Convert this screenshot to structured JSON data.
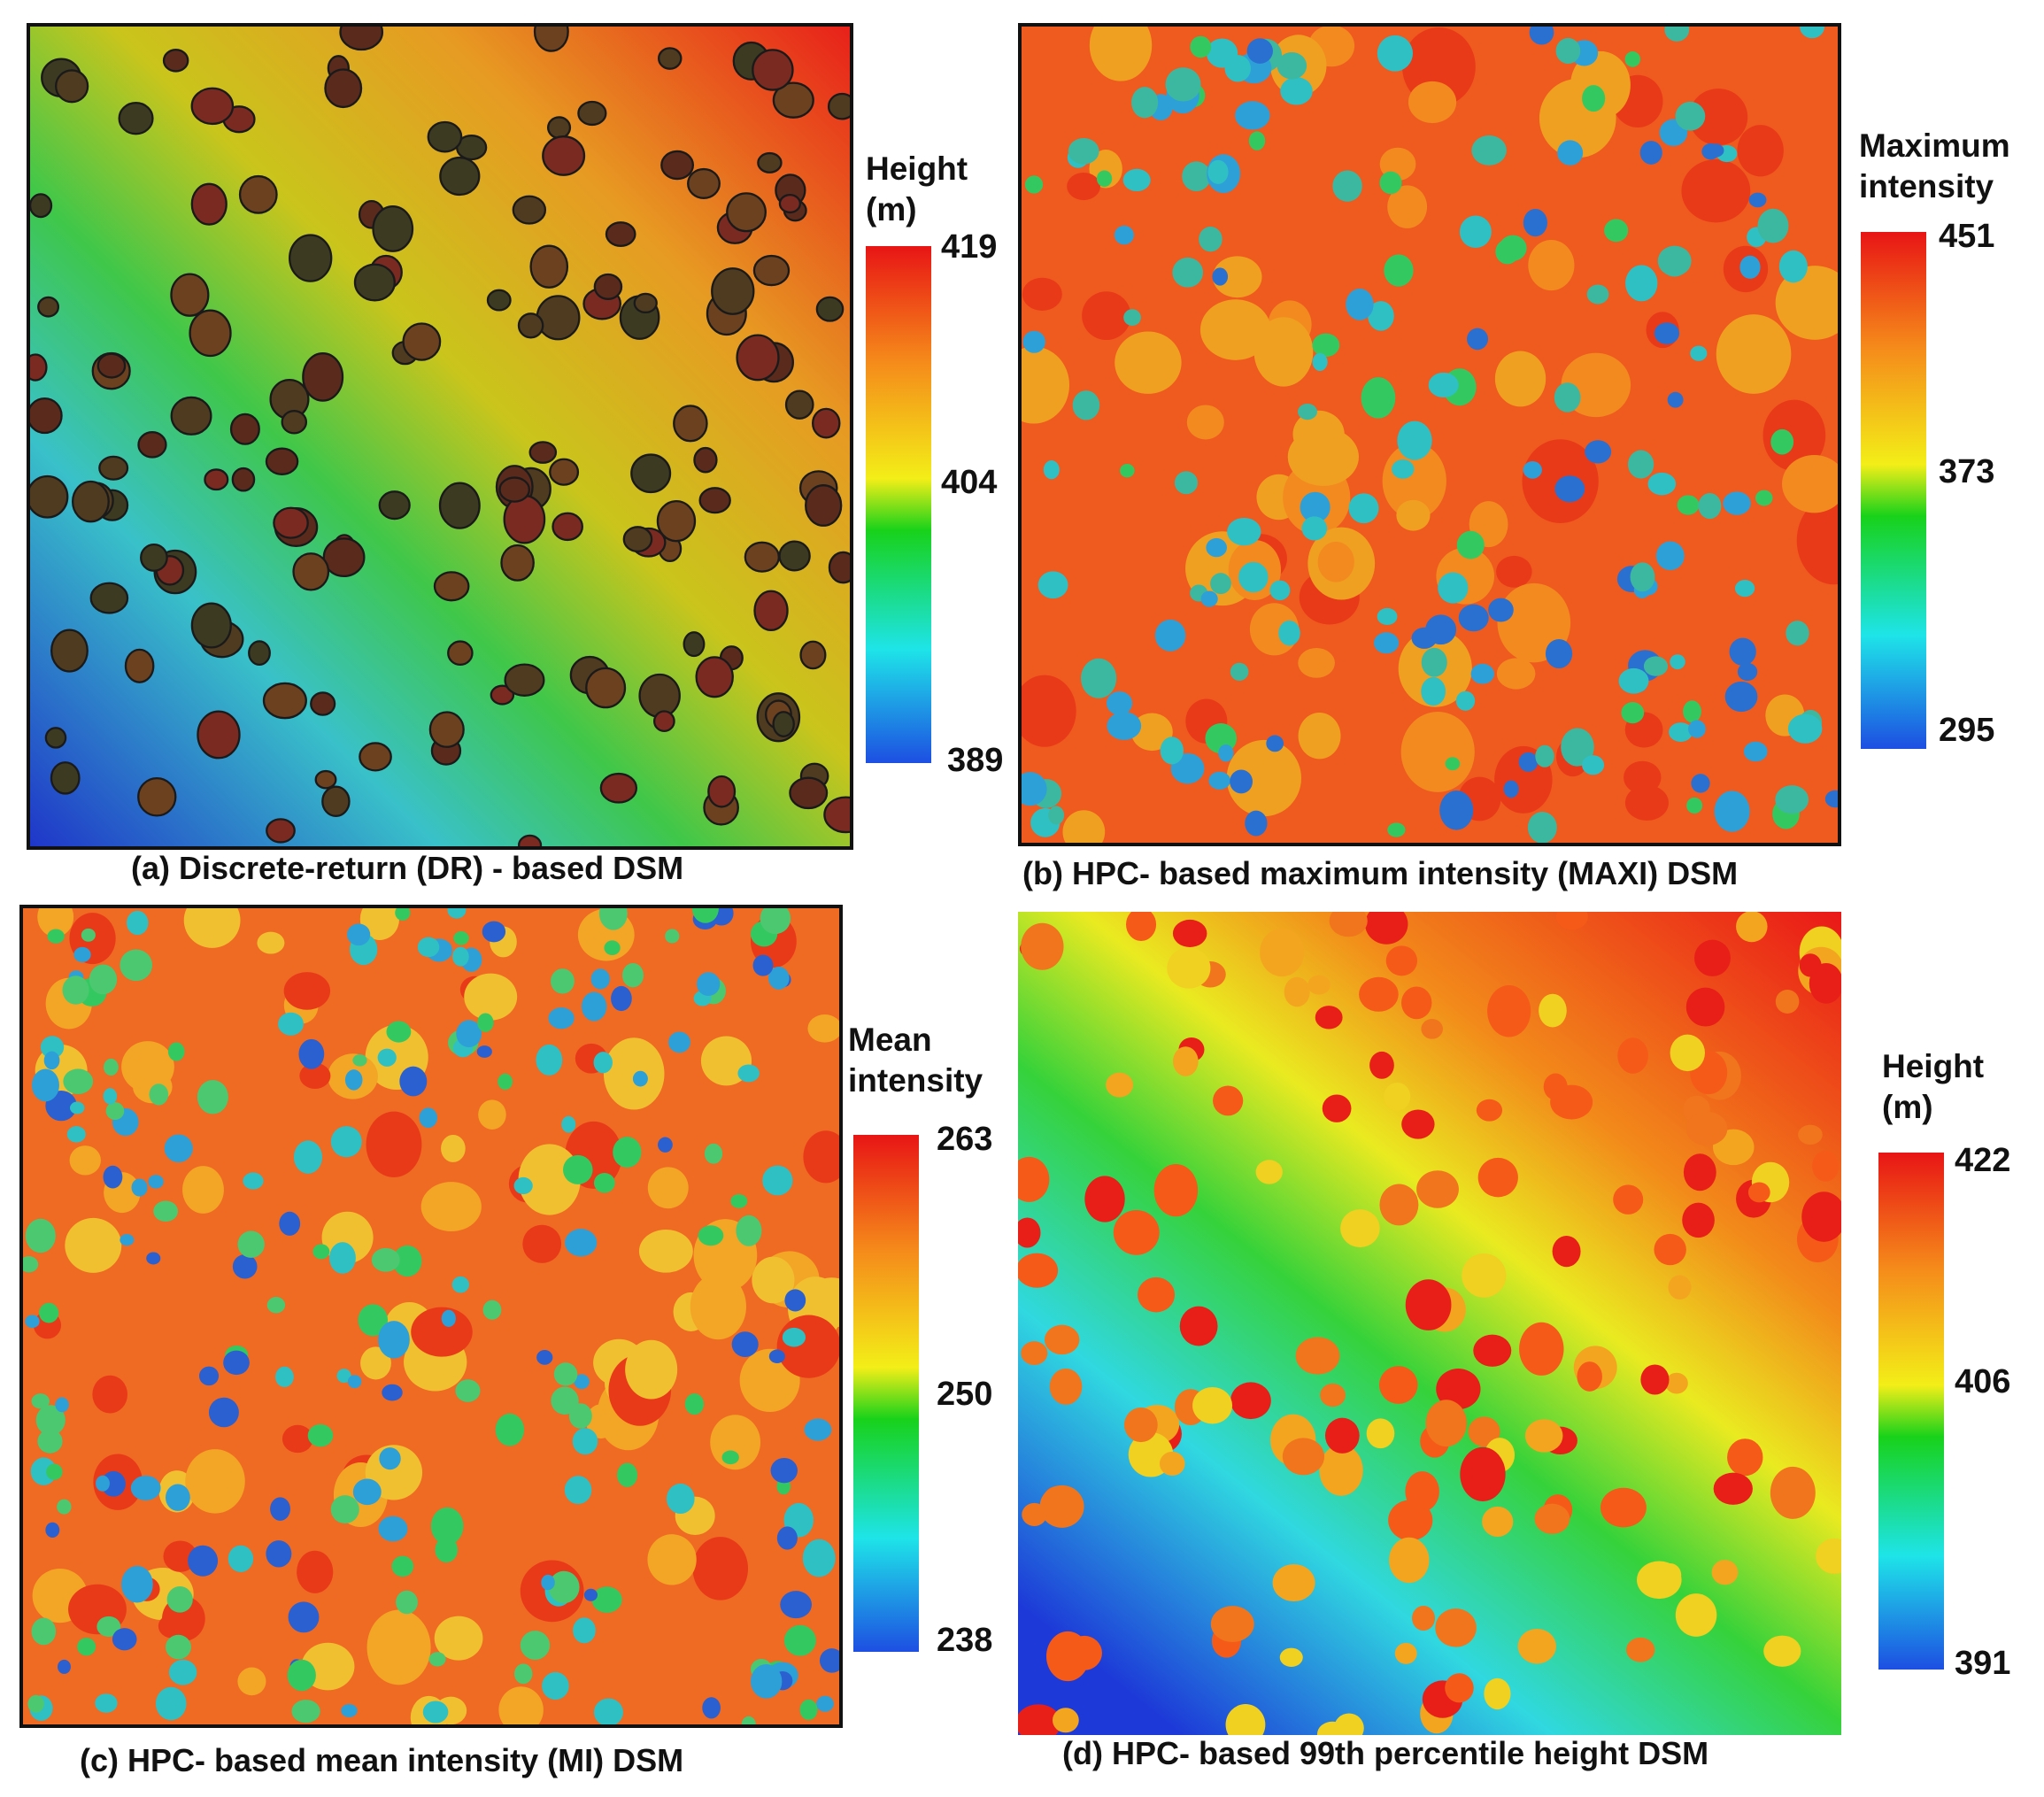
{
  "colors": {
    "ramp": [
      "#e81515",
      "#f5891a",
      "#f3ee18",
      "#18d21a",
      "#1ee4e8",
      "#1d4fe2"
    ],
    "frame": "#111111"
  },
  "panels": [
    {
      "id": "a",
      "caption": "(a) Discrete-return (DR) - based DSM",
      "legend_title_lines": [
        "Height",
        "(m)"
      ],
      "legend_ticks": [
        "419",
        "404",
        "389"
      ],
      "image": "discrete-return height DSM: blue-cyan terrain at lower left rising to yellow and red at upper right, covered with dark tree crowns"
    },
    {
      "id": "b",
      "caption": "(b) HPC- based maximum intensity (MAXI) DSM",
      "legend_title_lines": [
        "Maximum",
        "intensity"
      ],
      "legend_ticks": [
        "451",
        "373",
        "295"
      ],
      "image": "maximum intensity raster: mostly orange-red ground with scattered blue-green tree crowns"
    },
    {
      "id": "c",
      "caption": "(c) HPC- based mean intensity (MI) DSM",
      "legend_title_lines": [
        "Mean",
        "intensity"
      ],
      "legend_ticks": [
        "263",
        "250",
        "238"
      ],
      "image": "mean intensity raster: orange-red ground with many green and blue crowns"
    },
    {
      "id": "d",
      "caption": "(d) HPC- based 99th percentile height DSM",
      "legend_title_lines": [
        "Height",
        "(m)"
      ],
      "legend_ticks": [
        "422",
        "406",
        "391"
      ],
      "image": "99th percentile height raster: smooth blue to red surface with orange-red tree crowns"
    }
  ]
}
